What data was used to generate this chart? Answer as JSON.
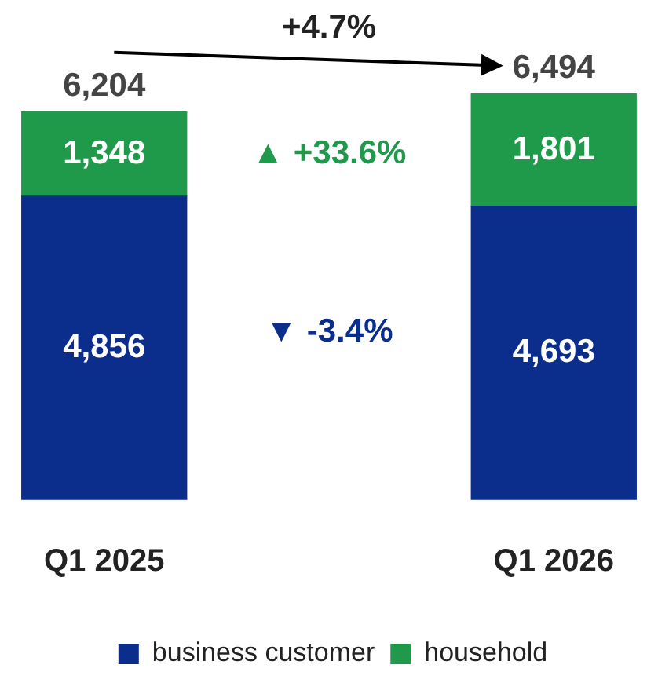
{
  "chart_data": {
    "type": "bar",
    "stacked": true,
    "categories": [
      "Q1 2025",
      "Q1 2026"
    ],
    "series": [
      {
        "name": "business customer",
        "color": "#0b2d8c",
        "values": [
          4856,
          4693
        ],
        "value_labels": [
          "4,856",
          "4,693"
        ]
      },
      {
        "name": "household",
        "color": "#1f9a4b",
        "values": [
          1348,
          1801
        ],
        "value_labels": [
          "1,348",
          "1,801"
        ]
      }
    ],
    "totals": [
      "6,204",
      "6,494"
    ],
    "annotations": [
      "+4.7%",
      "▲ +33.6%",
      "▼ -3.4%"
    ],
    "legend": "bottom",
    "grid": false
  }
}
